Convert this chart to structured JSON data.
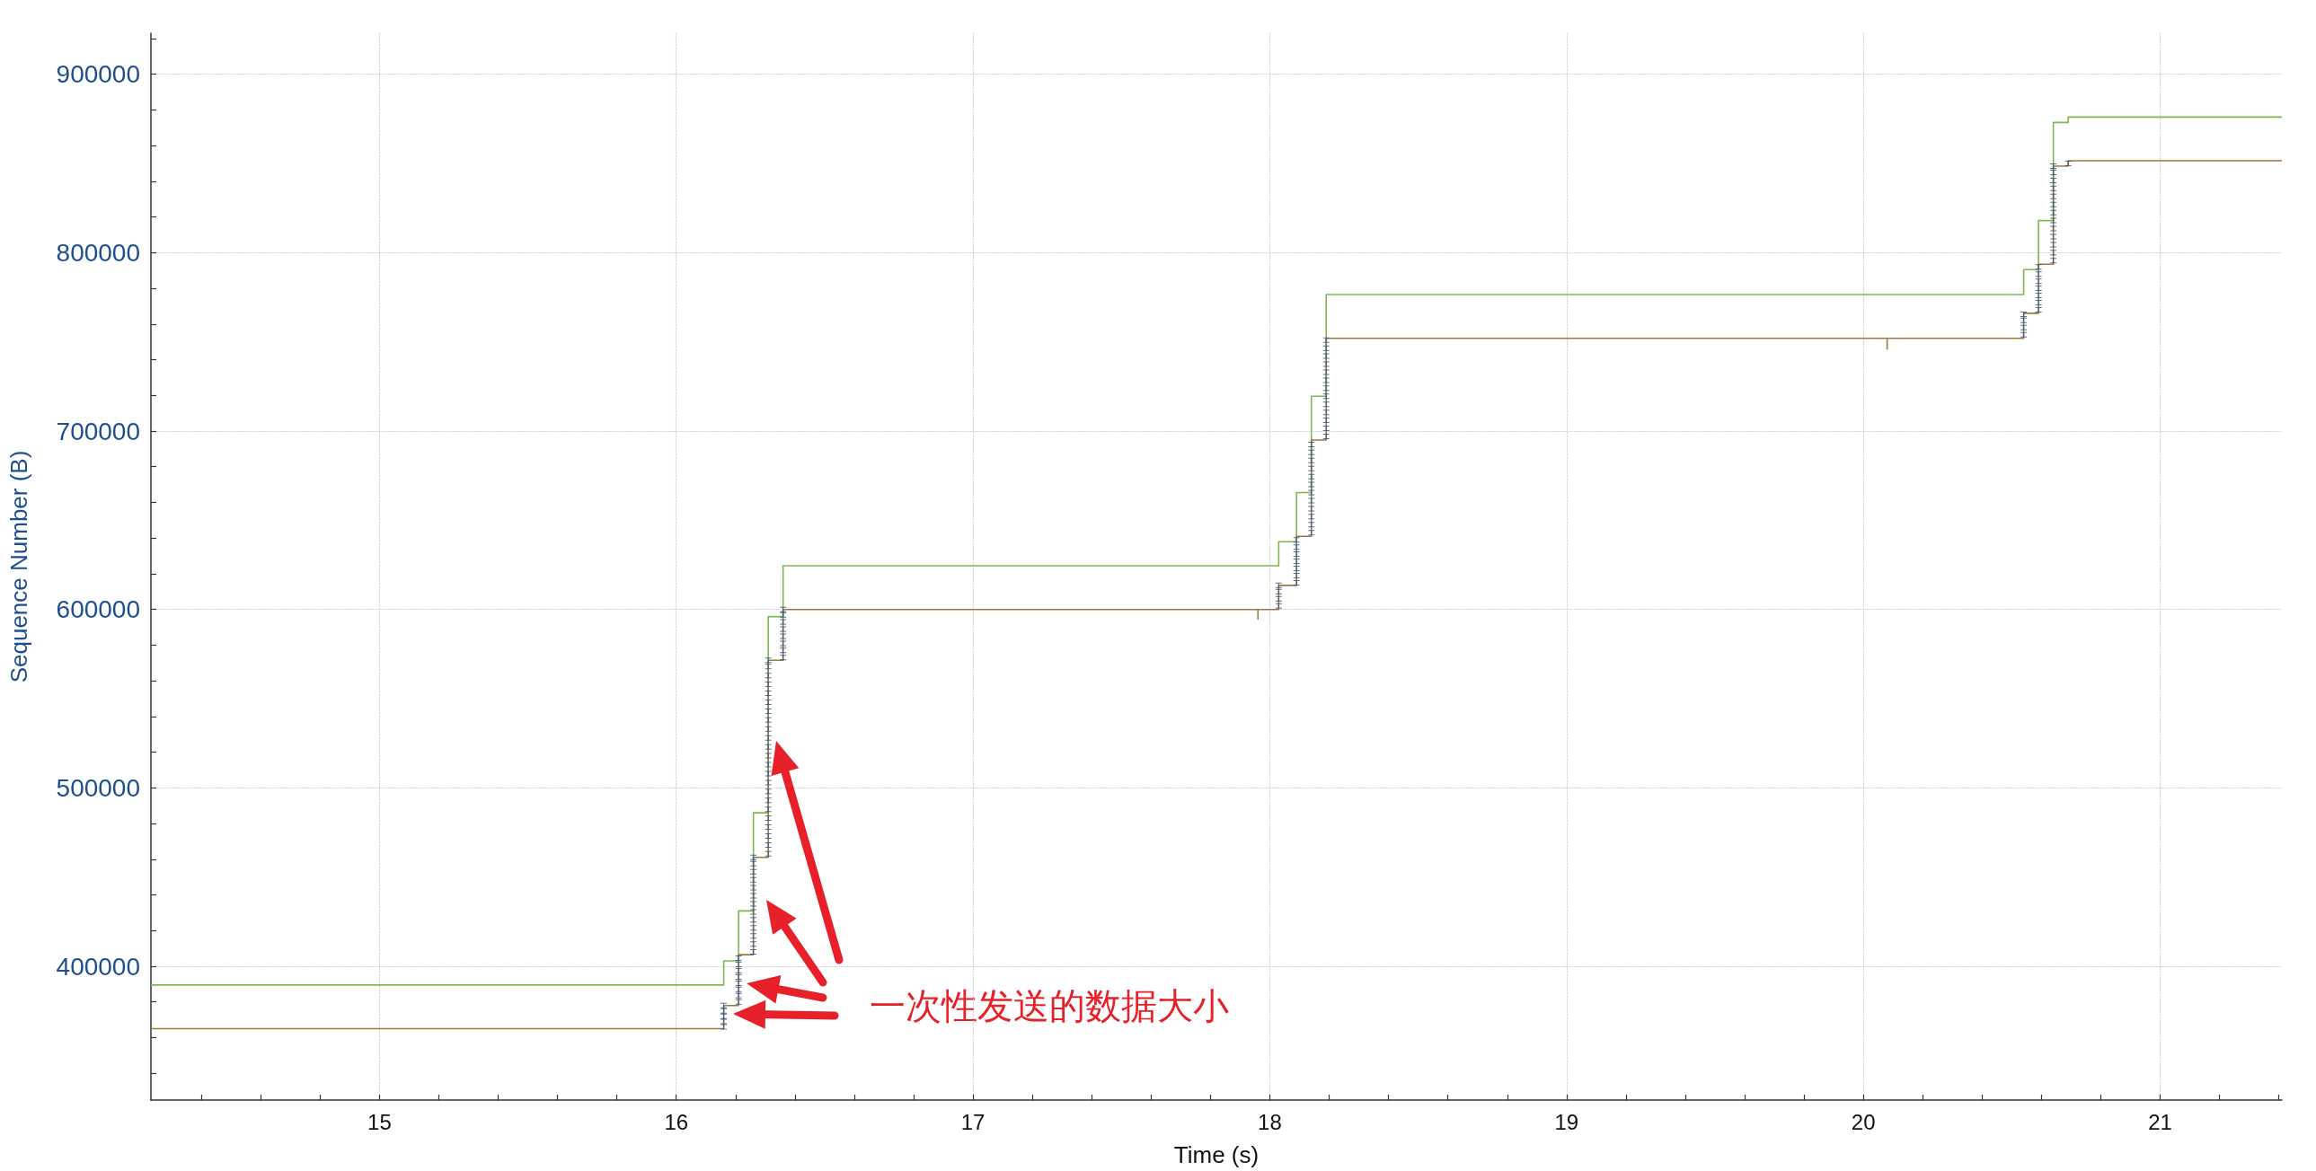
{
  "chart_data": {
    "type": "step",
    "xlabel": "Time (s)",
    "ylabel": "Sequence Number (B)",
    "xlim": [
      14.23,
      21.41
    ],
    "ylim": [
      325000,
      923000
    ],
    "xticks": [
      {
        "value": 14.4,
        "label": null
      },
      {
        "value": 14.6,
        "label": null
      },
      {
        "value": 14.8,
        "label": null
      },
      15,
      {
        "value": 15.2,
        "label": null
      },
      {
        "value": 15.4,
        "label": null
      },
      {
        "value": 15.6,
        "label": null
      },
      {
        "value": 15.8,
        "label": null
      },
      16,
      {
        "value": 16.2,
        "label": null
      },
      {
        "value": 16.4,
        "label": null
      },
      {
        "value": 16.6,
        "label": null
      },
      {
        "value": 16.8,
        "label": null
      },
      17,
      {
        "value": 17.2,
        "label": null
      },
      {
        "value": 17.4,
        "label": null
      },
      {
        "value": 17.6,
        "label": null
      },
      {
        "value": 17.8,
        "label": null
      },
      18,
      {
        "value": 18.2,
        "label": null
      },
      {
        "value": 18.4,
        "label": null
      },
      {
        "value": 18.6,
        "label": null
      },
      {
        "value": 18.8,
        "label": null
      },
      19,
      {
        "value": 19.2,
        "label": null
      },
      {
        "value": 19.4,
        "label": null
      },
      {
        "value": 19.6,
        "label": null
      },
      {
        "value": 19.8,
        "label": null
      },
      20,
      {
        "value": 20.2,
        "label": null
      },
      {
        "value": 20.4,
        "label": null
      },
      {
        "value": 20.6,
        "label": null
      },
      {
        "value": 20.8,
        "label": null
      },
      21,
      {
        "value": 21.2,
        "label": null
      },
      {
        "value": 21.4,
        "label": null
      }
    ],
    "yticks": [
      {
        "value": 340000,
        "label": null
      },
      {
        "value": 360000,
        "label": null
      },
      {
        "value": 380000,
        "label": null
      },
      400000,
      {
        "value": 420000,
        "label": null
      },
      {
        "value": 440000,
        "label": null
      },
      {
        "value": 460000,
        "label": null
      },
      {
        "value": 480000,
        "label": null
      },
      500000,
      {
        "value": 520000,
        "label": null
      },
      {
        "value": 540000,
        "label": null
      },
      {
        "value": 560000,
        "label": null
      },
      {
        "value": 580000,
        "label": null
      },
      600000,
      {
        "value": 620000,
        "label": null
      },
      {
        "value": 640000,
        "label": null
      },
      {
        "value": 660000,
        "label": null
      },
      {
        "value": 680000,
        "label": null
      },
      700000,
      {
        "value": 720000,
        "label": null
      },
      {
        "value": 740000,
        "label": null
      },
      {
        "value": 760000,
        "label": null
      },
      {
        "value": 780000,
        "label": null
      },
      800000,
      {
        "value": 820000,
        "label": null
      },
      {
        "value": 840000,
        "label": null
      },
      {
        "value": 860000,
        "label": null
      },
      {
        "value": 880000,
        "label": null
      },
      900000,
      {
        "value": 920000,
        "label": null
      }
    ],
    "grid": true,
    "annotations": [
      "一次性发送的数据大小"
    ],
    "series": [
      {
        "color": "#7cb84f",
        "x": [
          14.23,
          16.16,
          16.21,
          16.26,
          16.31,
          16.36,
          18.03,
          18.09,
          18.14,
          18.19,
          20.54,
          20.59,
          20.64,
          20.69,
          21.41
        ],
        "values": [
          389500,
          403000,
          431000,
          486000,
          596000,
          624500,
          638000,
          665500,
          719500,
          776500,
          790500,
          818000,
          873000,
          876000,
          876000
        ]
      },
      {
        "color": "#9a7b40",
        "x": [
          14.23,
          16.16,
          16.21,
          16.26,
          16.31,
          16.36,
          17.96,
          17.96,
          18.03,
          18.09,
          18.14,
          18.19,
          20.08,
          20.08,
          20.54,
          20.59,
          20.64,
          20.69,
          21.41
        ],
        "values": [
          365000,
          378000,
          406500,
          461000,
          571500,
          600000,
          594500,
          600000,
          613500,
          641000,
          695000,
          752000,
          746000,
          752000,
          766000,
          793500,
          848500,
          851500,
          851500
        ]
      },
      {
        "type": "scatter",
        "color": "#2c4f86",
        "x": [
          16.16,
          16.16,
          16.16,
          16.16,
          16.16,
          16.21,
          16.21,
          16.21,
          16.21,
          16.21,
          16.21,
          16.21,
          16.21,
          16.26,
          16.26,
          16.26,
          16.26,
          16.26,
          16.26,
          16.26,
          16.26,
          16.26,
          16.26,
          16.26,
          16.26,
          16.26,
          16.31,
          16.31,
          16.31,
          16.31,
          16.31,
          16.31,
          16.31,
          16.31,
          16.31,
          16.31,
          16.31,
          16.31,
          16.31,
          16.31,
          16.31,
          16.31,
          16.31,
          16.31,
          16.31,
          16.31,
          16.31,
          16.31,
          16.31,
          16.36,
          16.36,
          16.36,
          16.36,
          16.36,
          16.36,
          16.36,
          16.36,
          18.03,
          18.03,
          18.03,
          18.03,
          18.09,
          18.09,
          18.09,
          18.09,
          18.09,
          18.09,
          18.09,
          18.14,
          18.14,
          18.14,
          18.14,
          18.14,
          18.14,
          18.14,
          18.14,
          18.14,
          18.14,
          18.14,
          18.14,
          18.19,
          18.19,
          18.19,
          18.19,
          18.19,
          18.19,
          18.19,
          18.19,
          18.19,
          18.19,
          18.19,
          18.19,
          18.19,
          20.54,
          20.54,
          20.54,
          20.54,
          20.59,
          20.59,
          20.59,
          20.59,
          20.59,
          20.59,
          20.59,
          20.64,
          20.64,
          20.64,
          20.64,
          20.64,
          20.64,
          20.64,
          20.64,
          20.64,
          20.64,
          20.64,
          20.64,
          20.64,
          20.69
        ],
        "values": [
          366000,
          369000,
          372000,
          375000,
          378000,
          380000,
          383500,
          387000,
          390500,
          394000,
          397500,
          401000,
          404500,
          408000,
          412500,
          417000,
          421500,
          426000,
          430500,
          435000,
          439500,
          444000,
          448500,
          453000,
          457500,
          461000,
          463000,
          468000,
          473000,
          478000,
          483000,
          488000,
          493000,
          498000,
          503000,
          508000,
          513000,
          518000,
          523000,
          528000,
          533000,
          538000,
          543000,
          548000,
          553000,
          558000,
          563000,
          568000,
          571500,
          573000,
          577000,
          581000,
          585000,
          589000,
          593000,
          597000,
          600000,
          602000,
          606000,
          610000,
          613500,
          615000,
          619000,
          623000,
          627000,
          631000,
          635000,
          639000,
          643000,
          647500,
          652000,
          656500,
          661000,
          665500,
          670000,
          674500,
          679000,
          683500,
          688000,
          692500,
          697000,
          701500,
          706000,
          710500,
          715000,
          719500,
          724000,
          728500,
          733000,
          737500,
          742000,
          746500,
          751000,
          754000,
          758000,
          762000,
          765500,
          768000,
          772000,
          776000,
          780000,
          784000,
          788000,
          792000,
          795500,
          800000,
          804500,
          809000,
          813500,
          818000,
          822500,
          827000,
          831500,
          836000,
          840500,
          845000,
          848500,
          850000
        ]
      }
    ]
  }
}
